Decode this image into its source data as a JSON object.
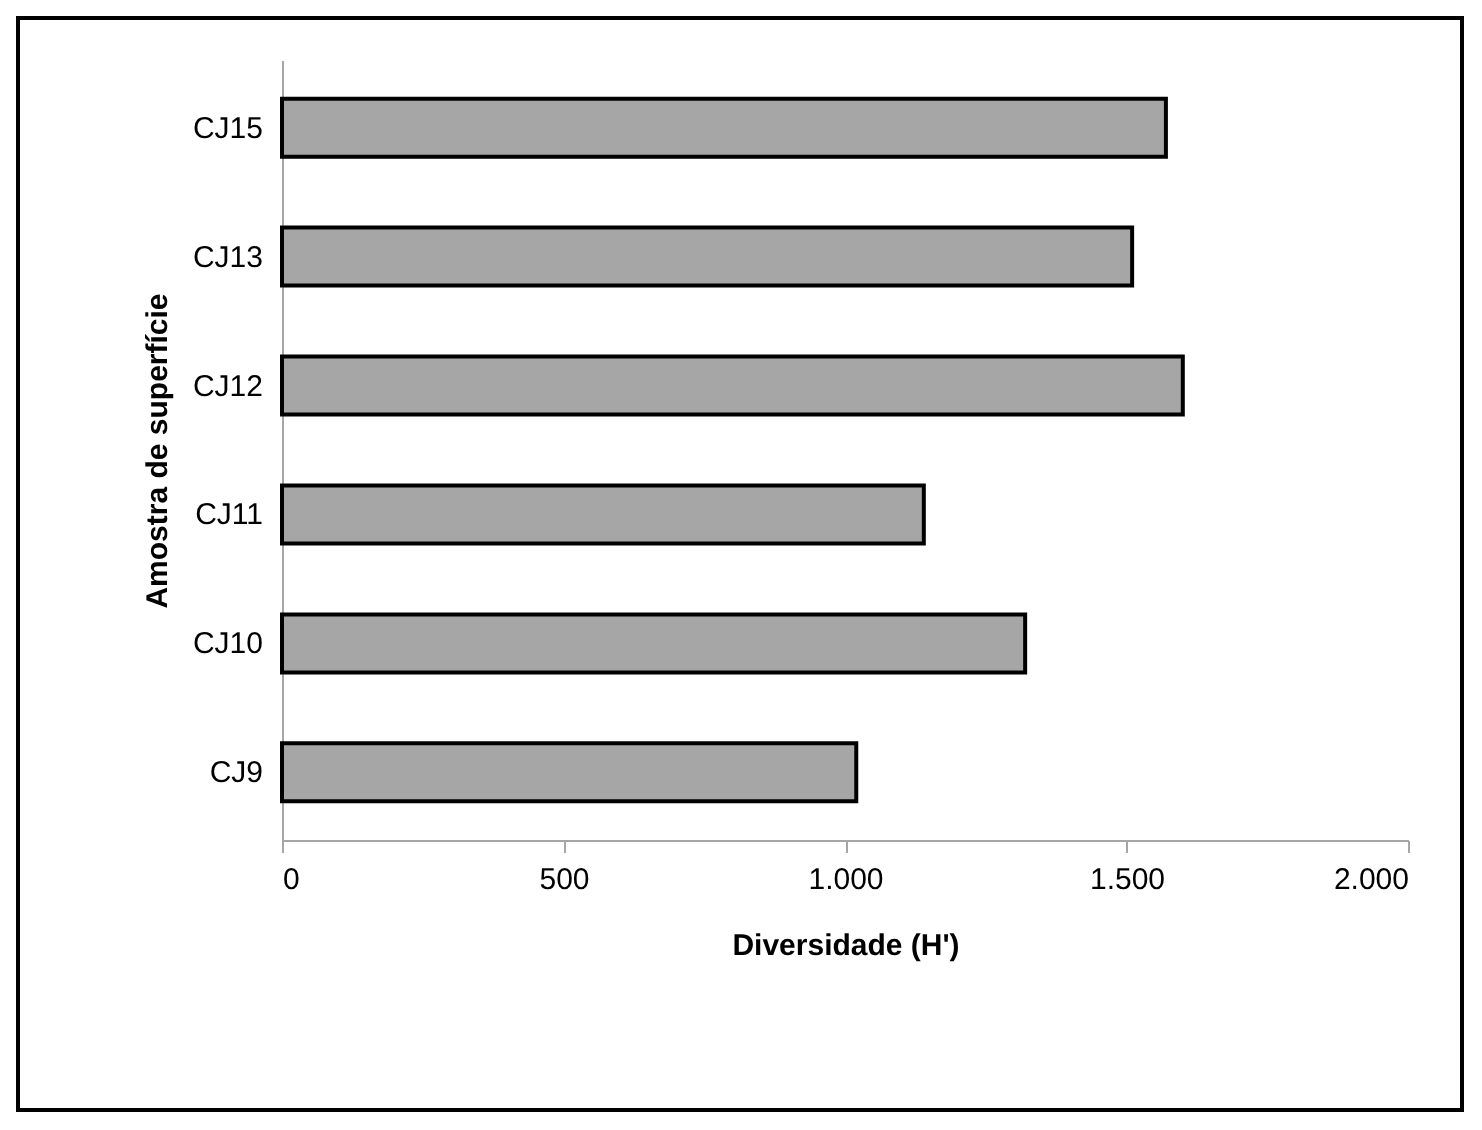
{
  "chart_data": {
    "type": "bar",
    "orientation": "horizontal",
    "xlabel": "Diversidade (H')",
    "ylabel": "Amostra de superfície",
    "categories": [
      "CJ15",
      "CJ13",
      "CJ12",
      "CJ11",
      "CJ10",
      "CJ9"
    ],
    "values": [
      1570,
      1510,
      1600,
      1140,
      1320,
      1020
    ],
    "color": "#a6a6a6",
    "xlim": [
      0,
      2000
    ],
    "xticks": [
      0,
      500,
      {
        "value": 1000,
        "label": "1.000"
      },
      {
        "value": 1500,
        "label": "1.500"
      },
      {
        "value": 2000,
        "label": "2.000"
      }
    ],
    "grid": false
  }
}
